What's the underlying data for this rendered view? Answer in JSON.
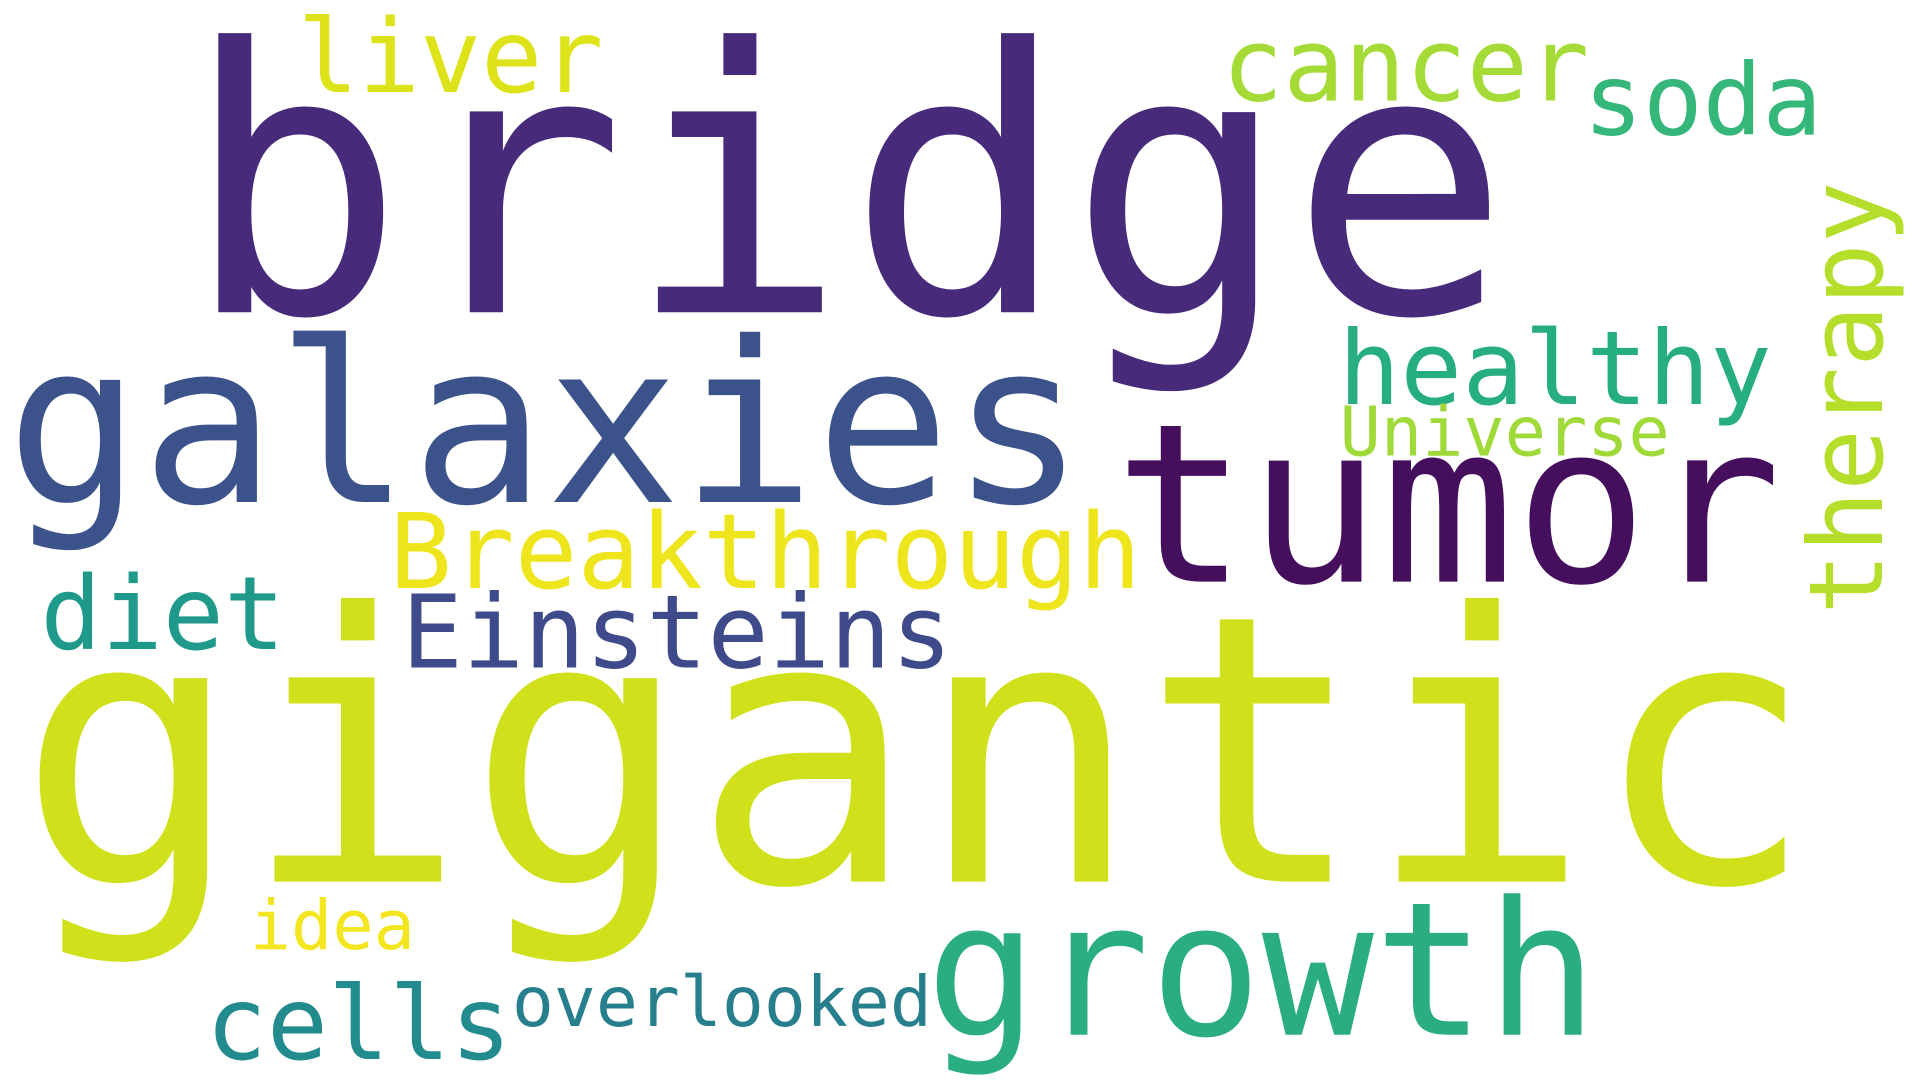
{
  "words": [
    {
      "text": "bridge",
      "color": "#472a7a"
    },
    {
      "text": "gigantic",
      "color": "#d0e11c"
    },
    {
      "text": "galaxies",
      "color": "#3b528b"
    },
    {
      "text": "tumor",
      "color": "#450f5e"
    },
    {
      "text": "growth",
      "color": "#2aae80"
    },
    {
      "text": "Breakthrough",
      "color": "#eee51c"
    },
    {
      "text": "Einsteins",
      "color": "#3e4a89"
    },
    {
      "text": "healthy",
      "color": "#26ad81"
    },
    {
      "text": "Universe",
      "color": "#a0da39"
    },
    {
      "text": "cancer",
      "color": "#a5db36"
    },
    {
      "text": "soda",
      "color": "#35b779"
    },
    {
      "text": "liver",
      "color": "#dde318"
    },
    {
      "text": "diet",
      "color": "#1f9a8a"
    },
    {
      "text": "therapy",
      "color": "#b5de2b"
    },
    {
      "text": "idea",
      "color": "#f4e61e"
    },
    {
      "text": "cells",
      "color": "#228b8d"
    },
    {
      "text": "overlooked",
      "color": "#277f8e"
    }
  ]
}
